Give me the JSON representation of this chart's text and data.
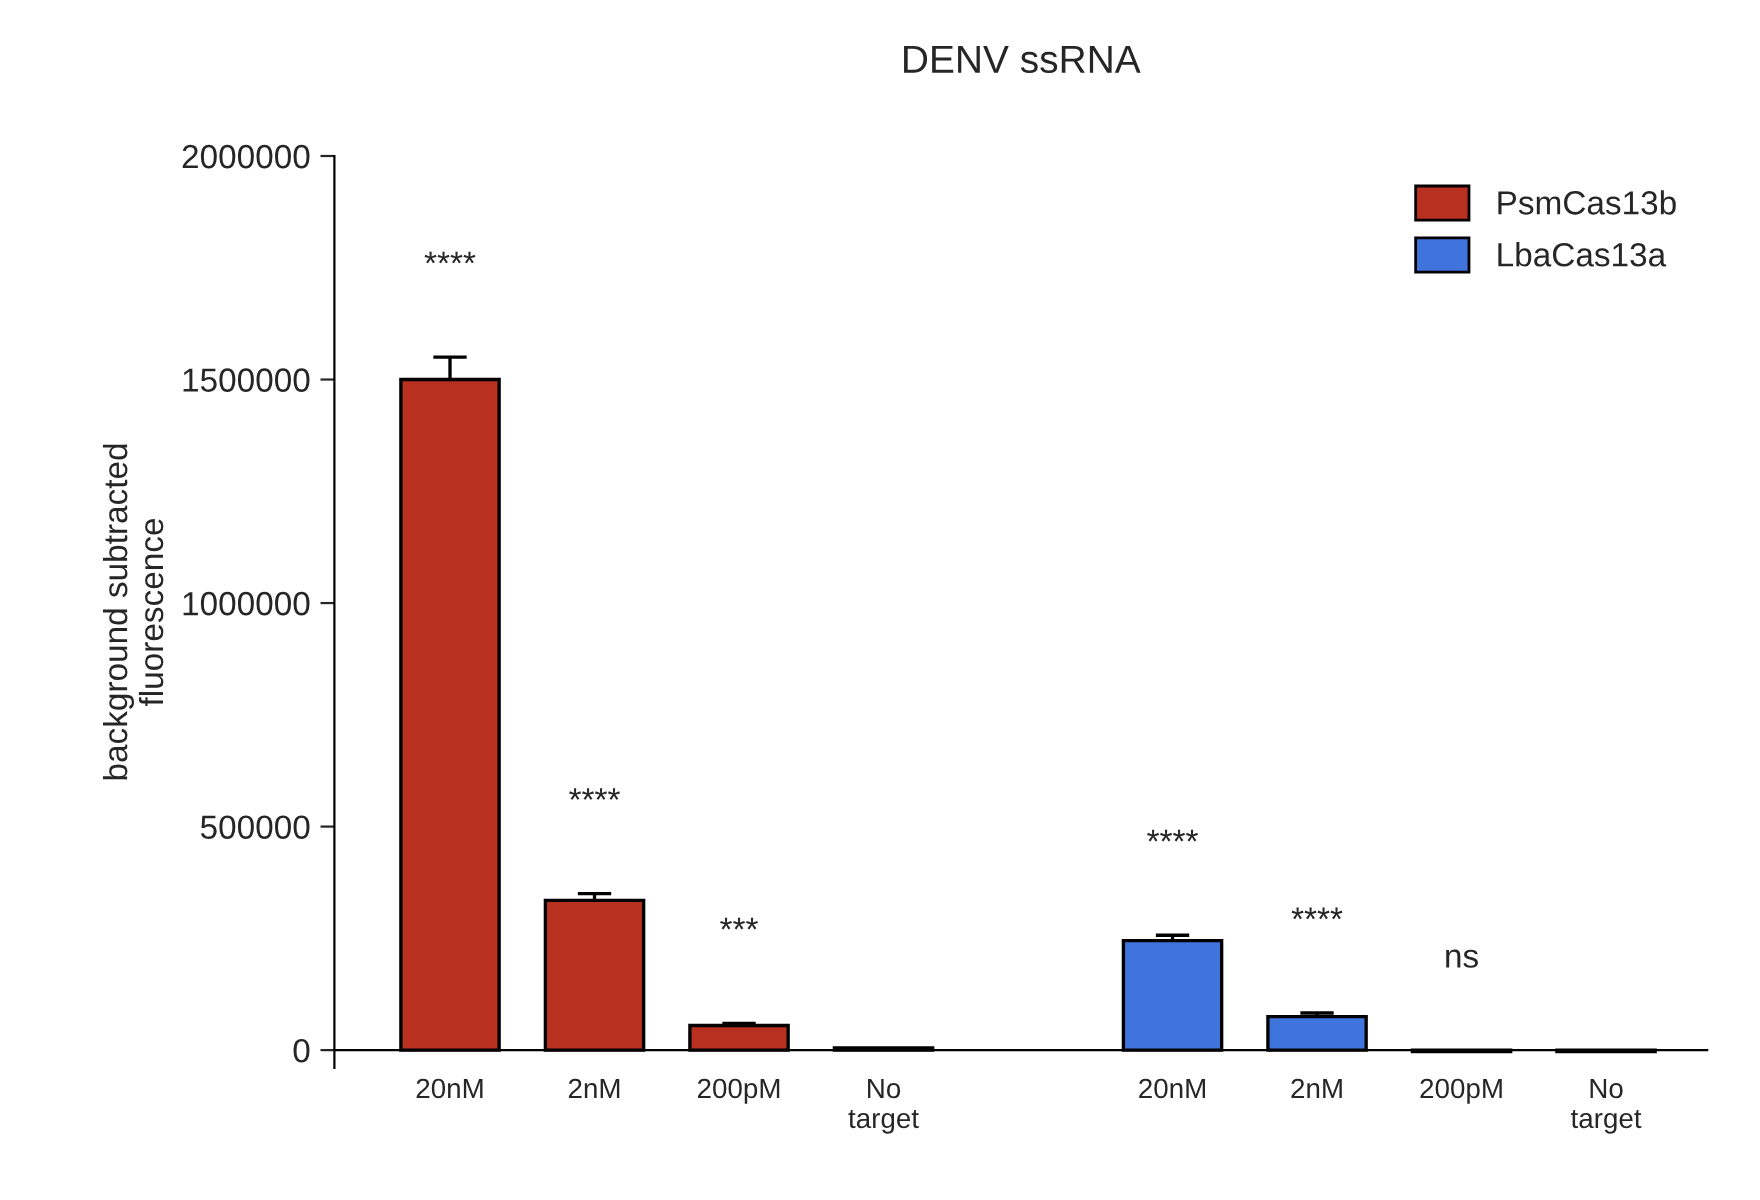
{
  "chart_data": {
    "type": "bar",
    "title": "DENV ssRNA",
    "ylabel": "background subtracted\nfluorescence",
    "categories": [
      "20nM",
      "2nM",
      "200pM",
      "No\ntarget",
      null,
      "20nM",
      "2nM",
      "200pM",
      "No\ntarget"
    ],
    "series": [
      {
        "name": "PsmCas13b",
        "color": "#b8301f",
        "values": [
          1500000,
          335000,
          55000,
          5000,
          null,
          null,
          null,
          null,
          null
        ],
        "errors": [
          50000,
          15000,
          5000,
          null,
          null,
          null,
          null,
          null,
          null
        ]
      },
      {
        "name": "LbaCas13a",
        "color": "#3f74dc",
        "values": [
          null,
          null,
          null,
          null,
          null,
          245000,
          75000,
          -3000,
          -3000
        ],
        "errors": [
          null,
          null,
          null,
          null,
          null,
          12000,
          8000,
          null,
          null
        ]
      }
    ],
    "ylim": [
      -40000,
      2000000
    ],
    "yticks": [
      0,
      500000,
      1000000,
      1500000,
      2000000
    ],
    "annotations": [
      "****",
      "****",
      "***",
      "****",
      "****",
      "ns"
    ],
    "legend": "top right",
    "grid": false
  }
}
